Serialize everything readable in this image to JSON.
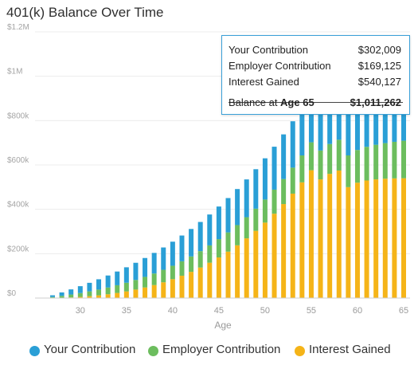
{
  "title": "401(k) Balance Over Time",
  "tooltip": {
    "rows": [
      {
        "label": "Your Contribution",
        "value": "$302,009"
      },
      {
        "label": "Employer Contribution",
        "value": "$169,125"
      },
      {
        "label": "Interest Gained",
        "value": "$540,127"
      }
    ],
    "total_label_prefix": "Balance at ",
    "total_label_age": "Age 65",
    "total_value": "$1,011,262"
  },
  "legend": [
    {
      "label": "Your Contribution",
      "color": "#2a9fd6"
    },
    {
      "label": "Employer Contribution",
      "color": "#6cbd5e"
    },
    {
      "label": "Interest Gained",
      "color": "#f5b418"
    }
  ],
  "chart_data": {
    "type": "bar",
    "stacked": true,
    "title": "401(k) Balance Over Time",
    "xlabel": "Age",
    "ylabel": "",
    "ylim": [
      0,
      1200000
    ],
    "y_ticks": [
      {
        "value": 0,
        "label": "$0"
      },
      {
        "value": 200000,
        "label": "$200k"
      },
      {
        "value": 400000,
        "label": "$400k"
      },
      {
        "value": 600000,
        "label": "$600k"
      },
      {
        "value": 800000,
        "label": "$800k"
      },
      {
        "value": 1000000,
        "label": "$1M"
      },
      {
        "value": 1200000,
        "label": "$1.2M"
      }
    ],
    "x_ticks": [
      "30",
      "35",
      "40",
      "45",
      "50",
      "55",
      "60",
      "65"
    ],
    "grid": true,
    "legend_position": "bottom",
    "categories": [
      27,
      28,
      29,
      30,
      31,
      32,
      33,
      34,
      35,
      36,
      37,
      38,
      39,
      40,
      41,
      42,
      43,
      44,
      45,
      46,
      47,
      48,
      49,
      50,
      51,
      52,
      53,
      54,
      55,
      56,
      57,
      58,
      59,
      60,
      61,
      62,
      63,
      64,
      65
    ],
    "series": [
      {
        "name": "Your Contribution",
        "color": "#2a9fd6",
        "values": [
          7744,
          15488,
          23232,
          30976,
          38720,
          46464,
          54208,
          61952,
          69696,
          77440,
          85184,
          92928,
          100672,
          108416,
          116160,
          123904,
          131648,
          139392,
          147136,
          154880,
          162624,
          170368,
          178112,
          185856,
          193600,
          201344,
          209088,
          216832,
          224576,
          232320,
          240064,
          247808,
          255552,
          263296,
          271040,
          278784,
          286528,
          294272,
          302009
        ]
      },
      {
        "name": "Employer Contribution",
        "color": "#6cbd5e",
        "values": [
          4337,
          8674,
          13011,
          17348,
          21685,
          26022,
          30359,
          34696,
          39033,
          43370,
          47707,
          52044,
          56381,
          60718,
          65055,
          69392,
          73729,
          78066,
          82403,
          86740,
          91077,
          95414,
          99751,
          104088,
          108425,
          112762,
          117099,
          121436,
          125773,
          130110,
          134447,
          138784,
          143121,
          147458,
          151795,
          156132,
          160469,
          164806,
          169125
        ]
      },
      {
        "name": "Interest Gained",
        "color": "#f5b418",
        "values": [
          400,
          1300,
          2900,
          5200,
          8300,
          12200,
          17100,
          23000,
          30000,
          38200,
          47700,
          58600,
          71000,
          85000,
          100700,
          118200,
          137700,
          159300,
          183100,
          209200,
          237800,
          269100,
          303100,
          340100,
          380300,
          423800,
          470800,
          521600,
          576300,
          535000,
          560000,
          575000,
          500000,
          520000,
          530000,
          535000,
          538000,
          539500,
          540127
        ]
      }
    ]
  }
}
